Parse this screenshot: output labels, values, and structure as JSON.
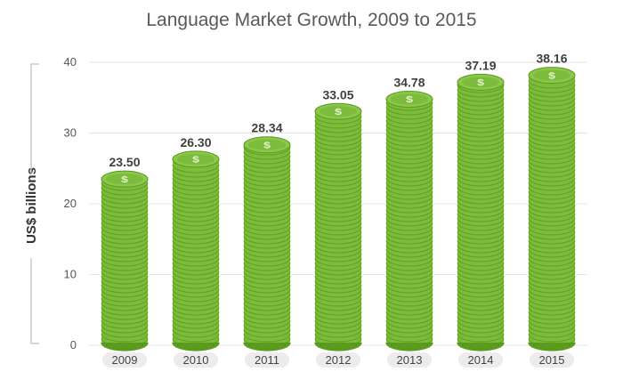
{
  "chart_data": {
    "type": "bar",
    "title": "Language Market Growth, 2009 to 2015",
    "xlabel": "",
    "ylabel": "US$ billions",
    "categories": [
      "2009",
      "2010",
      "2011",
      "2012",
      "2013",
      "2014",
      "2015"
    ],
    "values": [
      23.5,
      26.3,
      28.34,
      33.05,
      34.78,
      37.19,
      38.16
    ],
    "value_labels": [
      "23.50",
      "26.30",
      "28.34",
      "33.05",
      "34.78",
      "37.19",
      "38.16"
    ],
    "ylim": [
      0,
      40
    ],
    "yticks": [
      0,
      10,
      20,
      30,
      40
    ],
    "ytick_labels": [
      "0",
      "10",
      "20",
      "30",
      "40"
    ],
    "grid": true,
    "legend": "none",
    "mark_style": "stacked-coins",
    "coin_symbol": "$",
    "colors": {
      "coin_face": "#7dbb3c",
      "coin_edge": "#5a9a1d",
      "coin_rim": "#8bc74a",
      "grid": "#e6e6e6",
      "title": "#595959",
      "value_label": "#3f3f3f",
      "tick_label": "#555555",
      "category_pill": "#ececec"
    }
  }
}
